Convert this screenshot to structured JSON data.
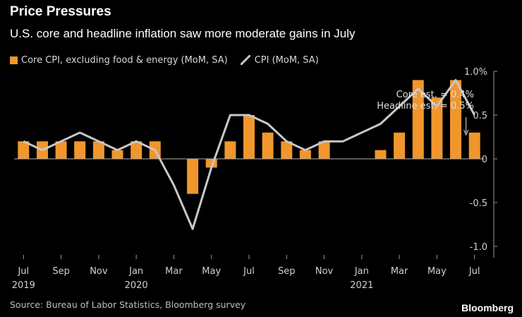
{
  "header": {
    "title": "Price Pressures",
    "subtitle": "U.S. core and headline inflation saw more moderate gains in July"
  },
  "legend": {
    "core_label": "Core CPI, excluding food & energy (MoM, SA)",
    "cpi_label": "CPI (MoM, SA)"
  },
  "footer": {
    "source": "Source: Bureau of Labor Statistics, Bloomberg survey",
    "brand": "Bloomberg"
  },
  "colors": {
    "background": "#000000",
    "bar": "#f0962d",
    "line": "#c8c8c8",
    "text": "#ffffff",
    "axis_text": "#d0d0d0"
  },
  "chart_data": {
    "type": "bar",
    "title": "Price Pressures",
    "subtitle": "U.S. core and headline inflation saw more moderate gains in July",
    "categories": [
      "Jul 2019",
      "Aug 2019",
      "Sep 2019",
      "Oct 2019",
      "Nov 2019",
      "Dec 2019",
      "Jan 2020",
      "Feb 2020",
      "Mar 2020",
      "Apr 2020",
      "May 2020",
      "Jun 2020",
      "Jul 2020",
      "Aug 2020",
      "Sep 2020",
      "Oct 2020",
      "Nov 2020",
      "Dec 2020",
      "Jan 2021",
      "Feb 2021",
      "Mar 2021",
      "Apr 2021",
      "May 2021",
      "Jun 2021",
      "Jul 2021"
    ],
    "series": [
      {
        "name": "Core CPI, excluding food & energy (MoM, SA)",
        "type": "bar",
        "values": [
          0.2,
          0.2,
          0.2,
          0.2,
          0.2,
          0.1,
          0.2,
          0.2,
          0.0,
          -0.4,
          -0.1,
          0.2,
          0.5,
          0.3,
          0.2,
          0.1,
          0.2,
          0.0,
          0.0,
          0.1,
          0.3,
          0.9,
          0.7,
          0.9,
          0.3
        ]
      },
      {
        "name": "CPI (MoM, SA)",
        "type": "line",
        "values": [
          0.2,
          0.1,
          0.2,
          0.3,
          0.2,
          0.1,
          0.2,
          0.1,
          -0.3,
          -0.8,
          -0.1,
          0.5,
          0.5,
          0.4,
          0.2,
          0.1,
          0.2,
          0.2,
          0.3,
          0.4,
          0.6,
          0.8,
          0.6,
          0.9,
          0.5
        ]
      }
    ],
    "xtick_labels": [
      {
        "index": 0,
        "month": "Jul",
        "year": "2019"
      },
      {
        "index": 2,
        "month": "Sep",
        "year": ""
      },
      {
        "index": 4,
        "month": "Nov",
        "year": ""
      },
      {
        "index": 6,
        "month": "Jan",
        "year": "2020"
      },
      {
        "index": 8,
        "month": "Mar",
        "year": ""
      },
      {
        "index": 10,
        "month": "May",
        "year": ""
      },
      {
        "index": 12,
        "month": "Jul",
        "year": ""
      },
      {
        "index": 14,
        "month": "Sep",
        "year": ""
      },
      {
        "index": 16,
        "month": "Nov",
        "year": ""
      },
      {
        "index": 18,
        "month": "Jan",
        "year": "2021"
      },
      {
        "index": 20,
        "month": "Mar",
        "year": ""
      },
      {
        "index": 22,
        "month": "May",
        "year": ""
      },
      {
        "index": 24,
        "month": "Jul",
        "year": ""
      }
    ],
    "yticks": [
      {
        "value": 1.0,
        "label": "1.0%"
      },
      {
        "value": 0.5,
        "label": "0.5"
      },
      {
        "value": 0.0,
        "label": "0"
      },
      {
        "value": -0.5,
        "label": "-0.5"
      },
      {
        "value": -1.0,
        "label": "-1.0"
      }
    ],
    "ylim": [
      -1.0,
      1.0
    ],
    "xlabel": "",
    "ylabel": "",
    "legend_position": "top-left",
    "grid": false,
    "annotations": [
      {
        "text": "Core est. = 0.4%",
        "index": 24,
        "value": 0.4
      },
      {
        "text": "Headline est. = 0.5%",
        "index": 24,
        "value": 0.5
      }
    ]
  }
}
